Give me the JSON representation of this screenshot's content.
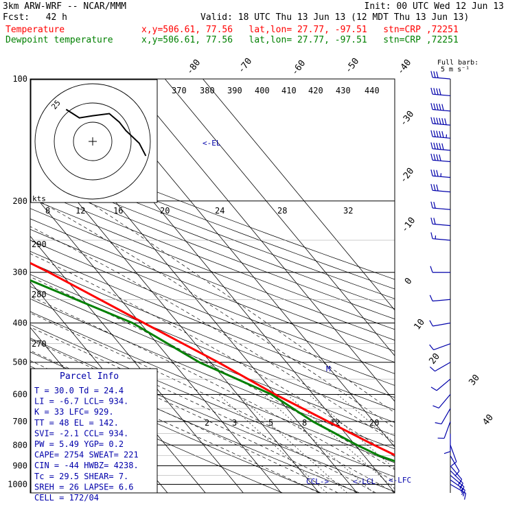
{
  "header": {
    "model": "3km ARW-WRF -- NCAR/MMM",
    "init": "Init: 00 UTC Wed 12 Jun 13",
    "fcst": "Fcst:   42 h",
    "valid": "Valid: 18 UTC Thu 13 Jun 13 (12 MDT Thu 13 Jun 13)",
    "temp_label": "Temperature",
    "dew_label": "Dewpoint temperature",
    "temp_loc": "x,y=506.61, 77.56   lat,lon= 27.77, -97.51   stn=CRP ,72251",
    "dew_loc": "x,y=506.61, 77.56   lat,lon= 27.77, -97.51   stn=CRP ,72251"
  },
  "colors": {
    "temperature": "#ff0000",
    "dewpoint": "#008000",
    "parcel_text": "#0000aa",
    "wind": "#0000aa",
    "header_temp": "#ff0000",
    "header_dew": "#008000"
  },
  "barb_label": {
    "line1": "Full barb:",
    "line2": "5 m s⁻¹"
  },
  "hodograph": {
    "ring_label": "25",
    "units": "kts"
  },
  "parcel_info": {
    "title": "Parcel Info",
    "rows": [
      "T  =   30.0  Td =  24.4",
      "LI =   -6.7  LCL=  934.",
      "K  =     33  LFC=  929.",
      "TT =     48  EL =  142.",
      "SVI=   -2.1  CCL=  934.",
      "PW =   5.49  YGP=   0.2",
      "CAPE=  2754  SWEAT=  221",
      "CIN =   -44  HWBZ= 4238.",
      "Tc =   29.5  SHEAR=   7.",
      "SREH =   26  LAPSE=  6.6",
      "CELL = 172/04"
    ]
  },
  "chart_data": {
    "type": "line",
    "title": "",
    "xlabel": "",
    "ylabel": "",
    "yscale": "log",
    "pressure_ticks": [
      "100",
      "200",
      "300",
      "400",
      "500",
      "600",
      "700",
      "800",
      "900",
      "1000"
    ],
    "isotherm_labels": [
      "-80",
      "-70",
      "-60",
      "-50",
      "-40",
      "-30",
      "-20",
      "-10",
      "0",
      "10",
      "20",
      "30",
      "40"
    ],
    "theta_labels": [
      "370",
      "380",
      "390",
      "400",
      "410",
      "420",
      "430",
      "440"
    ],
    "mixing_ratio_labels_top": [
      "8",
      "12",
      "16",
      "20",
      "24",
      "28",
      "32"
    ],
    "mixing_ratio_labels_bottom": [
      "2",
      "3",
      "5",
      "8",
      "12",
      "20"
    ],
    "theta_side_labels": [
      "290",
      "280",
      "270"
    ],
    "markers": {
      "ccl": "CCL->",
      "lcl": "<-LCL",
      "lfc": "<-LFC",
      "el": "<-EL",
      "m": "M"
    },
    "series": [
      {
        "name": "Temperature",
        "pressure": [
          1000,
          960,
          930,
          900,
          850,
          800,
          700,
          600,
          500,
          400,
          300,
          250,
          200,
          175,
          150,
          120,
          100
        ],
        "values": [
          30.0,
          26.0,
          23.6,
          22.0,
          18.5,
          15.0,
          8.0,
          0.0,
          -8.0,
          -19.0,
          -33.0,
          -43.0,
          -55.0,
          -63.0,
          -70.0,
          -69.0,
          -66.0
        ]
      },
      {
        "name": "Dewpoint temperature",
        "pressure": [
          1000,
          960,
          930,
          900,
          850,
          800,
          700,
          600,
          500,
          400,
          300,
          250,
          200,
          175,
          150,
          130,
          100
        ],
        "values": [
          24.4,
          23.0,
          22.0,
          19.5,
          14.0,
          10.5,
          4.0,
          -1.0,
          -13.0,
          -22.0,
          -43.0,
          -48.0,
          -60.0,
          -68.0,
          -78.0,
          -81.0,
          -78.0
        ]
      }
    ],
    "wind": {
      "pressure": [
        1000,
        975,
        950,
        925,
        900,
        850,
        800,
        750,
        700,
        650,
        600,
        550,
        500,
        450,
        400,
        350,
        300,
        250,
        230,
        210,
        190,
        175,
        160,
        150,
        140,
        130,
        120,
        110,
        100
      ],
      "speed_ms": [
        8,
        9,
        9,
        8,
        7,
        5,
        5,
        5,
        5,
        5,
        5,
        5,
        5,
        5,
        5,
        5,
        6,
        8,
        10,
        12,
        15,
        18,
        20,
        25,
        28,
        30,
        25,
        20,
        15
      ],
      "dir_deg": [
        120,
        125,
        130,
        135,
        140,
        150,
        160,
        180,
        200,
        210,
        220,
        230,
        240,
        250,
        260,
        265,
        270,
        275,
        275,
        275,
        275,
        275,
        275,
        275,
        275,
        275,
        275,
        275,
        275
      ]
    },
    "hodograph_path_kts": [
      [
        -8,
        8
      ],
      [
        -6,
        6
      ],
      [
        -4,
        4
      ],
      [
        0,
        5
      ],
      [
        5,
        6
      ],
      [
        8,
        2
      ],
      [
        10,
        -2
      ],
      [
        14,
        -8
      ],
      [
        16,
        -14
      ]
    ]
  }
}
